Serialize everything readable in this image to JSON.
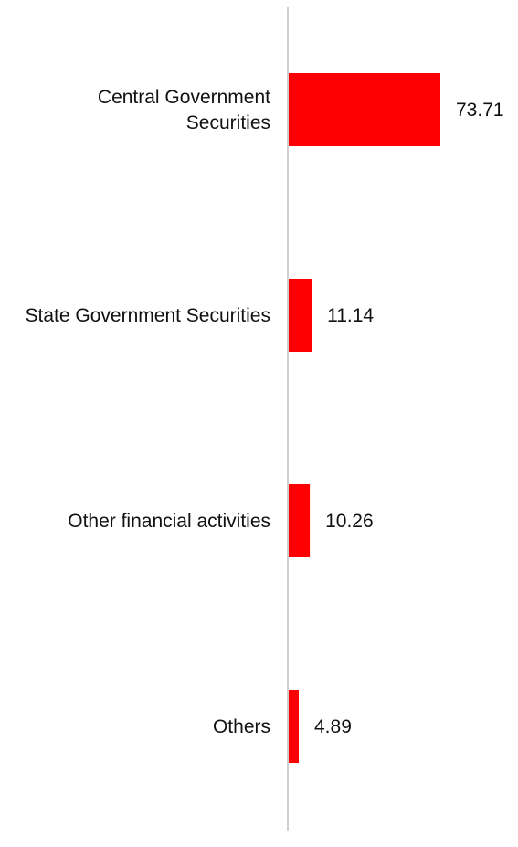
{
  "chart_data": {
    "type": "bar",
    "orientation": "horizontal",
    "categories": [
      [
        "Central Government",
        "Securities"
      ],
      [
        "State Government Securities"
      ],
      [
        "Other financial activities"
      ],
      [
        "Others"
      ]
    ],
    "values": [
      73.71,
      11.14,
      10.26,
      4.89
    ],
    "value_labels": [
      "73.71",
      "11.14",
      "10.26",
      "4.89"
    ],
    "title": "",
    "xlabel": "",
    "ylabel": "",
    "xlim": [
      0,
      100
    ],
    "grid": false,
    "legend": "none",
    "bar_color": "#ff0000",
    "axis_color": "#d0d0d0"
  }
}
